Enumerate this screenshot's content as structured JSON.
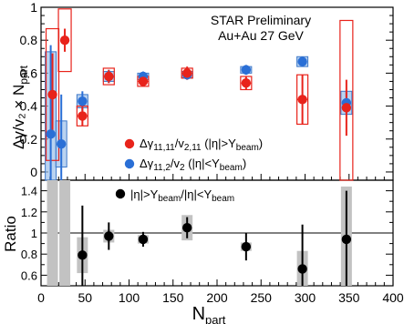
{
  "chart_data": {
    "type": "scatter",
    "title": "STAR Preliminary",
    "subtitle": "Au+Au 27 GeV",
    "xlabel": "N",
    "xlabel_sub": "part",
    "xlim": [
      0,
      400
    ],
    "xticks": [
      "0",
      "50",
      "100",
      "150",
      "200",
      "250",
      "300",
      "350",
      "400"
    ],
    "grid": false,
    "top_panel": {
      "ylabel": "Δγ/v₂ × N",
      "ylabel_sub": "part",
      "ylim": [
        -0.05,
        1.0
      ],
      "yticks": [
        "0",
        "0.2",
        "0.4",
        "0.6",
        "0.8",
        "1"
      ],
      "legend_position": "bottom-center",
      "series": [
        {
          "name": "Δγ11,11/v2,11 (|η|>Ybeam)",
          "name_main": "Δγ",
          "name_sub1": "11,11",
          "name_mid": "/v",
          "name_sub2": "2,11",
          "name_tail": " (|η|>Y",
          "name_sub3": "beam",
          "name_end": ")",
          "color": "#e8231b",
          "x": [
            13,
            27,
            47,
            77,
            116,
            166,
            233,
            297,
            347
          ],
          "y": [
            0.47,
            0.8,
            0.34,
            0.58,
            0.55,
            0.6,
            0.54,
            0.44,
            0.39
          ],
          "stat_err": [
            0.25,
            0.07,
            0.06,
            0.04,
            0.03,
            0.04,
            0.04,
            0.15,
            0.17
          ],
          "sys_err": [
            0.4,
            0.19,
            0.06,
            0.05,
            0.03,
            0.03,
            0.04,
            0.15,
            0.53
          ]
        },
        {
          "name": "Δγ11,2/v2 (|η|<Ybeam)",
          "name_main": "Δγ",
          "name_sub1": "11,2",
          "name_mid": "/v",
          "name_sub2": "2",
          "name_tail": " (|η|<Y",
          "name_sub3": "beam",
          "name_end": ")",
          "color": "#2a6fd6",
          "x": [
            11,
            23,
            47,
            77,
            116,
            166,
            233,
            297,
            347
          ],
          "y": [
            0.23,
            0.17,
            0.43,
            0.58,
            0.58,
            0.59,
            0.62,
            0.67,
            0.42
          ],
          "stat_err": [
            0.54,
            0.3,
            0.06,
            0.04,
            0.03,
            0.03,
            0.03,
            0.03,
            0.07
          ],
          "sys_err": [
            0.5,
            0.14,
            0.04,
            0.03,
            0.02,
            0.02,
            0.02,
            0.03,
            0.07
          ]
        }
      ]
    },
    "bottom_panel": {
      "ylabel": "Ratio",
      "ylim": [
        0.5,
        1.5
      ],
      "yticks": [
        "0.6",
        "0.8",
        "1",
        "1.2",
        "1.4"
      ],
      "reference_line": 1.0,
      "legend_position": "top-center",
      "series": [
        {
          "name": "|η|>Ybeam/|η|<Ybeam",
          "name_main": "|η|>Y",
          "name_sub1": "beam",
          "name_mid": "/|η|<Y",
          "name_sub2": "beam",
          "color": "#000000",
          "x": [
            13,
            27,
            47,
            77,
            116,
            166,
            233,
            297,
            347
          ],
          "y": [
            null,
            null,
            0.79,
            0.97,
            0.94,
            1.05,
            0.87,
            0.66,
            0.94
          ],
          "stat_err": [
            null,
            null,
            0.47,
            0.13,
            0.07,
            0.1,
            0.13,
            0.42,
            0.46
          ],
          "sys_err": [
            1.0,
            1.0,
            0.17,
            0.06,
            0.04,
            0.12,
            0.04,
            0.17,
            0.5
          ]
        }
      ]
    }
  }
}
